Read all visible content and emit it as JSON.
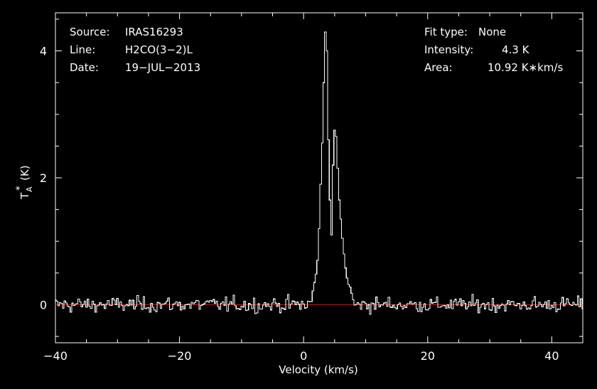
{
  "info_left": [
    {
      "label": "Source:",
      "value": "IRAS16293"
    },
    {
      "label": "Line:",
      "value": "H2CO(3−2)L"
    },
    {
      "label": "Date:",
      "value": "19−JUL−2013"
    }
  ],
  "info_right": [
    {
      "label": "Fit type:",
      "value": "None"
    },
    {
      "label": "Intensity:",
      "value": "4.3 K"
    },
    {
      "label": "Area:",
      "value": "10.92 K∗km/s"
    }
  ],
  "chart_data": {
    "type": "line",
    "style": "step histogram",
    "xlabel": "Velocity (km/s)",
    "ylabel_main": "T",
    "ylabel_sub": "A",
    "ylabel_sup": "*",
    "ylabel_unit": "(K)",
    "xlim": [
      -40,
      45
    ],
    "ylim": [
      -0.6,
      4.6
    ],
    "xticks": [
      -40,
      -20,
      0,
      20,
      40
    ],
    "xtick_labels": [
      "−40",
      "−20",
      "0",
      "20",
      "40"
    ],
    "yticks": [
      0,
      2,
      4
    ],
    "ytick_labels": [
      "0",
      "2",
      "4"
    ],
    "baseline": 0,
    "colors": {
      "spectrum": "#ffffff",
      "baseline": "#dd0000",
      "background": "#000000"
    },
    "channel_width": 0.25,
    "noise_rms": 0.12,
    "peak_points": [
      {
        "x": 1.25,
        "y": 0.05
      },
      {
        "x": 1.5,
        "y": 0.22
      },
      {
        "x": 1.75,
        "y": 0.35
      },
      {
        "x": 2.0,
        "y": 0.48
      },
      {
        "x": 2.25,
        "y": 0.7
      },
      {
        "x": 2.5,
        "y": 1.2
      },
      {
        "x": 2.75,
        "y": 1.9
      },
      {
        "x": 3.0,
        "y": 2.55
      },
      {
        "x": 3.25,
        "y": 3.5
      },
      {
        "x": 3.5,
        "y": 4.3
      },
      {
        "x": 3.75,
        "y": 4.0
      },
      {
        "x": 4.0,
        "y": 2.6
      },
      {
        "x": 4.25,
        "y": 1.65
      },
      {
        "x": 4.5,
        "y": 1.1
      },
      {
        "x": 4.75,
        "y": 2.2
      },
      {
        "x": 5.0,
        "y": 2.75
      },
      {
        "x": 5.25,
        "y": 2.65
      },
      {
        "x": 5.5,
        "y": 2.15
      },
      {
        "x": 5.75,
        "y": 1.65
      },
      {
        "x": 6.0,
        "y": 1.35
      },
      {
        "x": 6.25,
        "y": 1.05
      },
      {
        "x": 6.5,
        "y": 0.8
      },
      {
        "x": 6.75,
        "y": 0.58
      },
      {
        "x": 7.0,
        "y": 0.42
      },
      {
        "x": 7.25,
        "y": 0.32
      },
      {
        "x": 7.5,
        "y": 0.28
      },
      {
        "x": 7.75,
        "y": 0.18
      },
      {
        "x": 8.0,
        "y": 0.08
      }
    ]
  }
}
